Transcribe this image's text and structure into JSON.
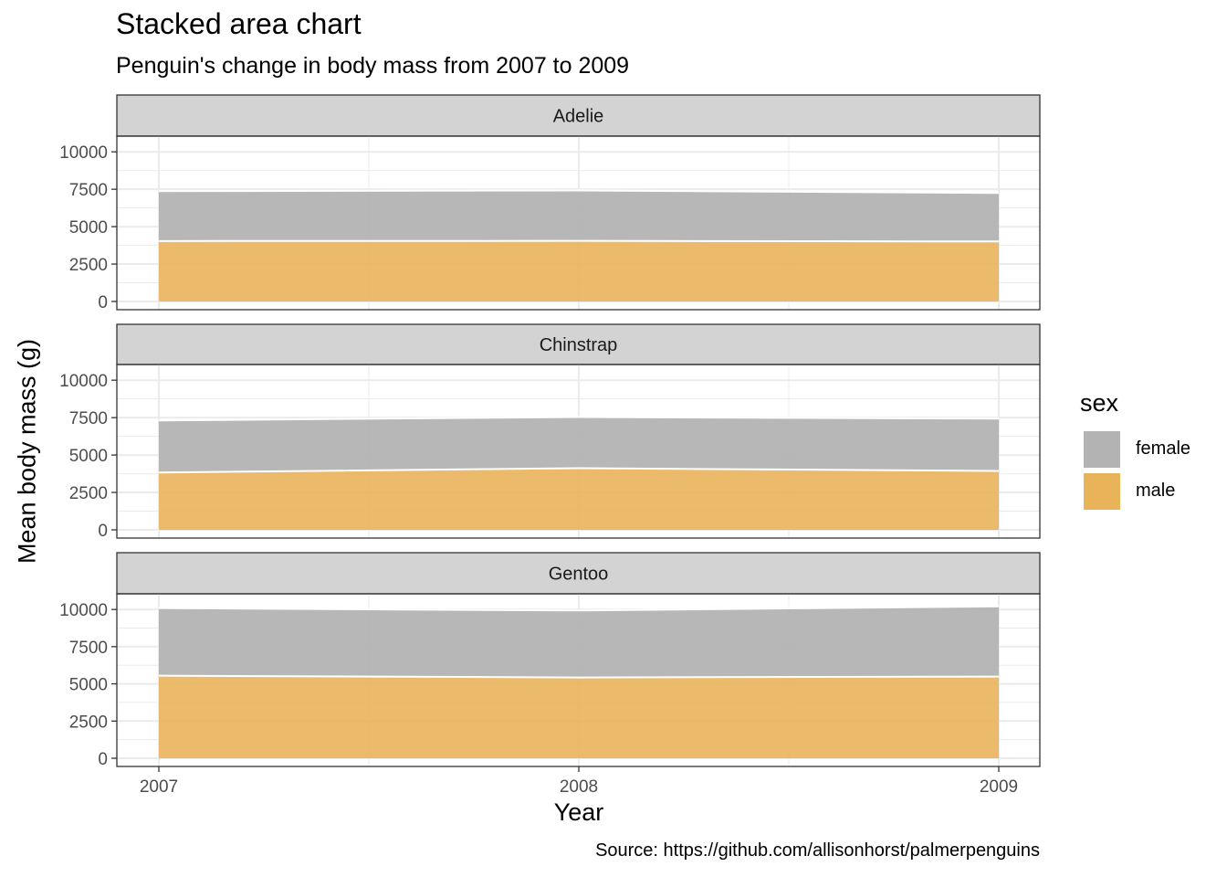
{
  "title": "Stacked area chart",
  "subtitle": "Penguin's change in body mass from 2007 to 2009",
  "caption": "Source: https://github.com/allisonhorst/palmerpenguins",
  "colors": {
    "female": "#b3b3b3",
    "male": "#e9b35a",
    "strip": "#d3d3d3",
    "grid": "#ebebeb"
  },
  "legend": {
    "title": "sex",
    "items": [
      {
        "label": "female",
        "color": "#b3b3b3"
      },
      {
        "label": "male",
        "color": "#e9b35a"
      }
    ]
  },
  "chart_data": {
    "type": "area",
    "stacked": true,
    "xlabel": "Year",
    "ylabel": "Mean body mass (g)",
    "x": [
      2007,
      2008,
      2009
    ],
    "xticks": [
      "2007",
      "2008",
      "2009"
    ],
    "yticks": [
      "0",
      "2500",
      "5000",
      "7500",
      "10000"
    ],
    "ylim": [
      0,
      10500
    ],
    "grid": true,
    "legend_position": "right",
    "facets": [
      {
        "label": "Adelie",
        "series": [
          {
            "name": "male",
            "values": [
              4040,
              4050,
              4010
            ]
          },
          {
            "name": "female",
            "values": [
              3330,
              3370,
              3240
            ]
          }
        ]
      },
      {
        "label": "Chinstrap",
        "series": [
          {
            "name": "male",
            "values": [
              3830,
              4120,
              3940
            ]
          },
          {
            "name": "female",
            "values": [
              3480,
              3420,
              3490
            ]
          }
        ]
      },
      {
        "label": "Gentoo",
        "series": [
          {
            "name": "male",
            "values": [
              5550,
              5430,
              5490
            ]
          },
          {
            "name": "female",
            "values": [
              4540,
              4500,
              4720
            ]
          }
        ]
      }
    ]
  }
}
